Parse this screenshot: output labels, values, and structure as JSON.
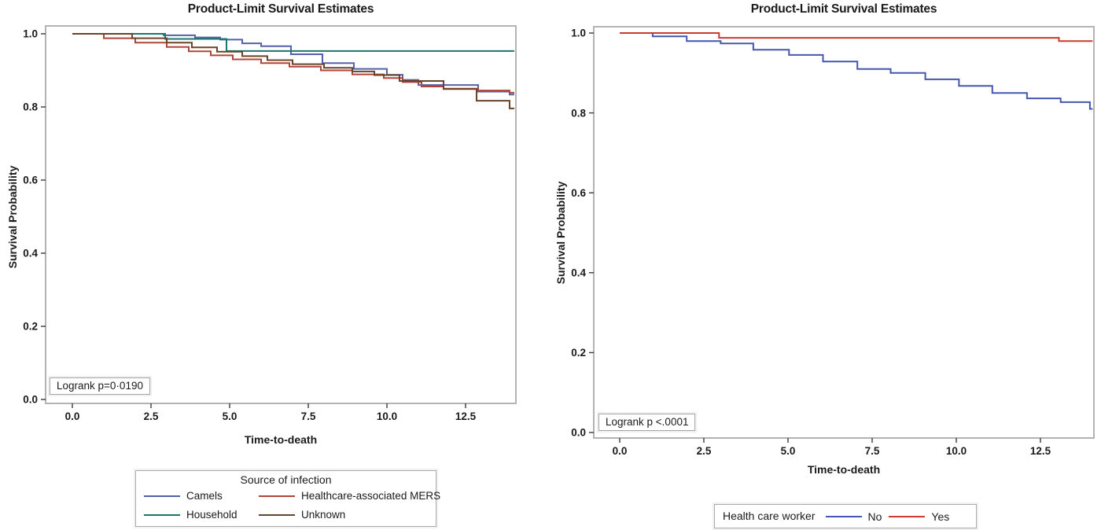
{
  "figure": {
    "background": "#ffffff",
    "frame_color": "#b3b3b3",
    "tick_color": "#3a3a3a",
    "text_color": "#1a1a1a"
  },
  "chart_data": [
    {
      "type": "line",
      "subtype": "kaplan-meier-step",
      "title": "Product-Limit Survival Estimates",
      "xlabel": "Time-to-death",
      "ylabel": "Survival Probability",
      "annotation": "Logrank p=0·0190",
      "xlim": [
        -0.85,
        14.1
      ],
      "ylim": [
        0.0,
        1.02
      ],
      "xticks": [
        0.0,
        2.5,
        5.0,
        7.5,
        10.0,
        12.5
      ],
      "yticks": [
        1.0,
        0.8,
        0.6,
        0.4,
        0.2,
        0.0
      ],
      "grid": false,
      "legend": {
        "title": "Source of infection",
        "position": "bottom"
      },
      "series": [
        {
          "name": "Camels",
          "color": "#5461A6",
          "points": [
            [
              0,
              1.0
            ],
            [
              2.9,
              0.996
            ],
            [
              3.9,
              0.99
            ],
            [
              4.7,
              0.984
            ],
            [
              5.4,
              0.974
            ],
            [
              6.0,
              0.966
            ],
            [
              6.95,
              0.944
            ],
            [
              7.95,
              0.92
            ],
            [
              8.95,
              0.904
            ],
            [
              10.0,
              0.888
            ],
            [
              10.5,
              0.874
            ],
            [
              11.0,
              0.86
            ],
            [
              12.9,
              0.842
            ],
            [
              13.9,
              0.834
            ],
            [
              14.05,
              0.834
            ]
          ]
        },
        {
          "name": "Healthcare-associated MERS",
          "color": "#B0443B",
          "points": [
            [
              0,
              1.0
            ],
            [
              1.0,
              0.988
            ],
            [
              2.0,
              0.976
            ],
            [
              3.0,
              0.964
            ],
            [
              3.7,
              0.952
            ],
            [
              4.4,
              0.941
            ],
            [
              5.1,
              0.93
            ],
            [
              6.0,
              0.92
            ],
            [
              6.9,
              0.91
            ],
            [
              7.9,
              0.9
            ],
            [
              8.9,
              0.889
            ],
            [
              9.9,
              0.879
            ],
            [
              10.5,
              0.868
            ],
            [
              11.1,
              0.856
            ],
            [
              11.8,
              0.85
            ],
            [
              12.9,
              0.845
            ],
            [
              13.9,
              0.839
            ],
            [
              14.05,
              0.839
            ]
          ]
        },
        {
          "name": "Household",
          "color": "#17786C",
          "points": [
            [
              0,
              1.0
            ],
            [
              2.95,
              0.986
            ],
            [
              4.9,
              0.953
            ],
            [
              14.05,
              0.953
            ]
          ]
        },
        {
          "name": "Unknown",
          "color": "#694428",
          "points": [
            [
              0,
              1.0
            ],
            [
              1.9,
              0.988
            ],
            [
              3.0,
              0.976
            ],
            [
              3.8,
              0.963
            ],
            [
              4.6,
              0.951
            ],
            [
              5.4,
              0.939
            ],
            [
              6.2,
              0.928
            ],
            [
              7.0,
              0.917
            ],
            [
              8.0,
              0.907
            ],
            [
              8.9,
              0.897
            ],
            [
              9.6,
              0.887
            ],
            [
              10.4,
              0.871
            ],
            [
              11.8,
              0.849
            ],
            [
              12.85,
              0.817
            ],
            [
              13.9,
              0.796
            ],
            [
              14.05,
              0.796
            ]
          ]
        }
      ]
    },
    {
      "type": "line",
      "subtype": "kaplan-meier-step",
      "title": "Product-Limit Survival Estimates",
      "xlabel": "Time-to-death",
      "ylabel": "Survival Probability",
      "annotation": "Logrank p <.0001",
      "xlim": [
        -0.8,
        14.1
      ],
      "ylim": [
        0.0,
        1.02
      ],
      "xticks": [
        0.0,
        2.5,
        5.0,
        7.5,
        10.0,
        12.5
      ],
      "yticks": [
        1.0,
        0.8,
        0.6,
        0.4,
        0.2,
        0.0
      ],
      "grid": false,
      "legend": {
        "title": "Health care worker",
        "position": "bottom"
      },
      "series": [
        {
          "name": "No",
          "color": "#4456B0",
          "points": [
            [
              0,
              1.0
            ],
            [
              0.98,
              0.9915
            ],
            [
              1.99,
              0.98
            ],
            [
              3.0,
              0.974
            ],
            [
              3.97,
              0.958
            ],
            [
              5.03,
              0.945
            ],
            [
              6.04,
              0.9285
            ],
            [
              7.06,
              0.91
            ],
            [
              8.05,
              0.9
            ],
            [
              9.08,
              0.884
            ],
            [
              10.08,
              0.8675
            ],
            [
              11.07,
              0.85
            ],
            [
              12.1,
              0.8365
            ],
            [
              13.1,
              0.827
            ],
            [
              13.97,
              0.81
            ],
            [
              14.05,
              0.81
            ]
          ]
        },
        {
          "name": "Yes",
          "color": "#C93A2F",
          "points": [
            [
              0,
              1.0
            ],
            [
              2.95,
              0.988
            ],
            [
              13.05,
              0.98
            ],
            [
              14.05,
              0.98
            ]
          ]
        }
      ]
    }
  ]
}
